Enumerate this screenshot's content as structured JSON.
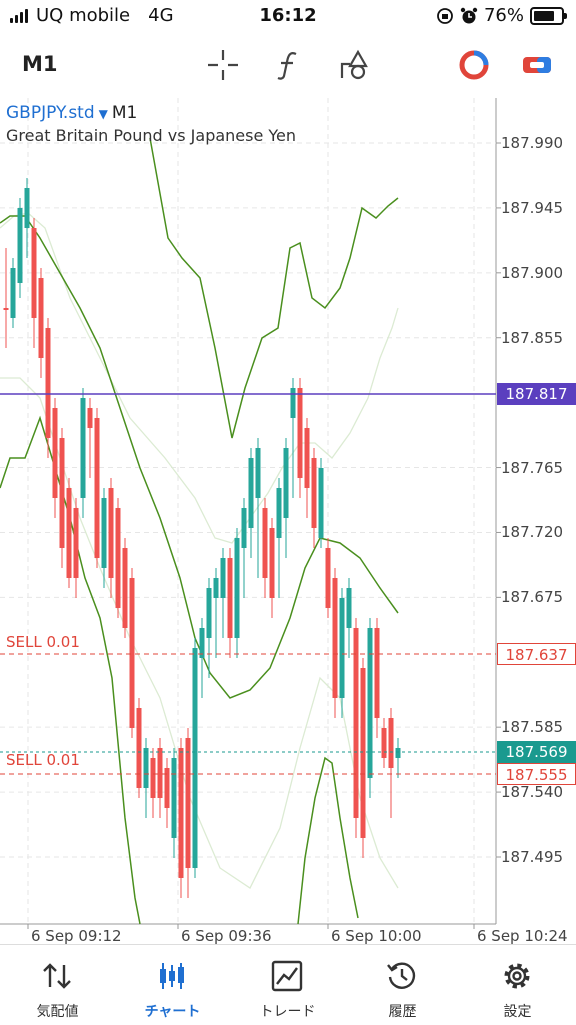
{
  "status": {
    "carrier": "UQ mobile",
    "network": "4G",
    "time": "16:12",
    "battery": "76%"
  },
  "toolbar": {
    "timeframe": "M1",
    "icons": [
      "crosshair-icon",
      "function-icon",
      "objects-icon",
      "trade-circle-icon",
      "toggle-icon"
    ]
  },
  "chart": {
    "symbol": "GBPJPY.std",
    "period": "M1",
    "description": "Great Britain Pound vs Japanese Yen",
    "price_ticks": [
      "187.990",
      "187.945",
      "187.900",
      "187.855",
      "187.765",
      "187.720",
      "187.675",
      "187.585",
      "187.540",
      "187.495"
    ],
    "time_ticks": [
      "6 Sep 09:12",
      "6 Sep 09:36",
      "6 Sep 10:00",
      "6 Sep 10:24"
    ],
    "bid_price": "187.817",
    "ask_price": "187.569",
    "positions": [
      {
        "label": "SELL 0.01",
        "price": "187.637"
      },
      {
        "label": "SELL 0.01",
        "price": "187.555"
      }
    ],
    "colors": {
      "bull": "#26a69a",
      "bear": "#ef5350",
      "band": "#4a8f1e",
      "bid_line": "#5b3fbf",
      "ask_line": "#1a9a8f",
      "sell_line": "#e0453a"
    }
  },
  "nav": {
    "items": [
      {
        "label": "気配値",
        "icon": "quotes-icon"
      },
      {
        "label": "チャート",
        "icon": "chart-icon"
      },
      {
        "label": "トレード",
        "icon": "trade-icon"
      },
      {
        "label": "履歴",
        "icon": "history-icon"
      },
      {
        "label": "設定",
        "icon": "settings-icon"
      }
    ],
    "active": "チャート"
  }
}
